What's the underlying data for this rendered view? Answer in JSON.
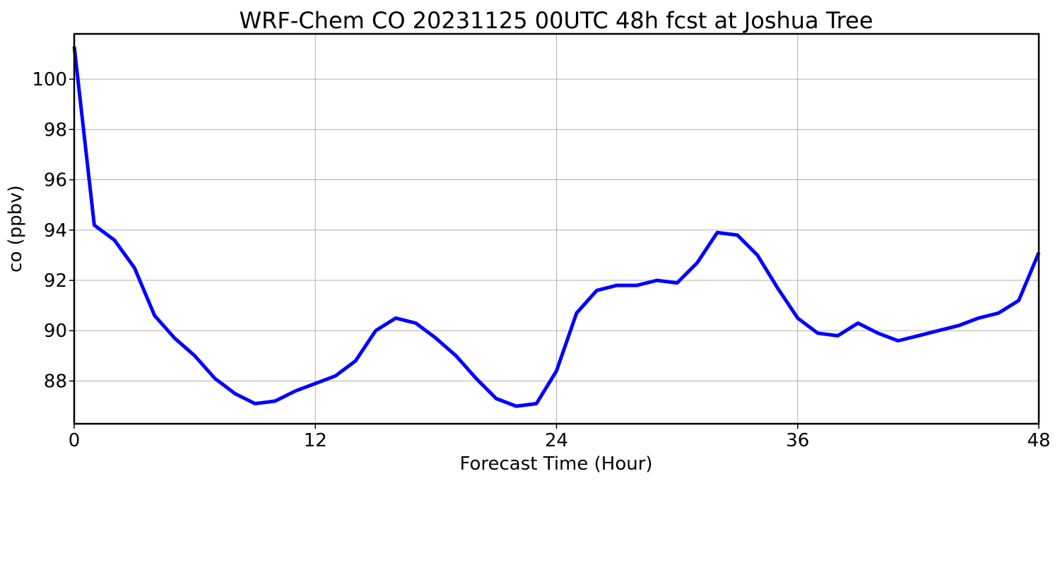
{
  "chart_data": {
    "type": "line",
    "title": "WRF-Chem CO  20231125 00UTC 48h fcst at Joshua Tree",
    "xlabel": "Forecast Time (Hour)",
    "ylabel": "co  (ppbv)",
    "xlim": [
      0,
      48
    ],
    "ylim": [
      86.3,
      101.8
    ],
    "xticks": [
      0,
      12,
      24,
      36,
      48
    ],
    "yticks": [
      88,
      90,
      92,
      94,
      96,
      98,
      100
    ],
    "grid": true,
    "line_color": "#0000ff",
    "series": [
      {
        "x": [
          0,
          1,
          2,
          3,
          4,
          5,
          6,
          7,
          8,
          9,
          10,
          11,
          12,
          13,
          14,
          15,
          16,
          17,
          18,
          19,
          20,
          21,
          22,
          23,
          24,
          25,
          26,
          27,
          28,
          29,
          30,
          31,
          32,
          33,
          34,
          35,
          36,
          37,
          38,
          39,
          40,
          41,
          42,
          43,
          44,
          45,
          46,
          47,
          48
        ],
        "values": [
          101.3,
          94.2,
          93.6,
          92.5,
          90.6,
          89.7,
          89.0,
          88.1,
          87.5,
          87.1,
          87.2,
          87.6,
          87.9,
          88.2,
          88.8,
          90.0,
          90.5,
          90.3,
          89.7,
          89.0,
          88.1,
          87.3,
          87.0,
          87.1,
          88.4,
          90.7,
          91.6,
          91.8,
          91.8,
          92.0,
          91.9,
          92.7,
          93.9,
          93.8,
          93.0,
          91.7,
          90.5,
          89.9,
          89.8,
          90.3,
          89.9,
          89.6,
          89.8,
          90.0,
          90.2,
          90.5,
          90.7,
          91.2,
          93.1
        ]
      }
    ]
  }
}
